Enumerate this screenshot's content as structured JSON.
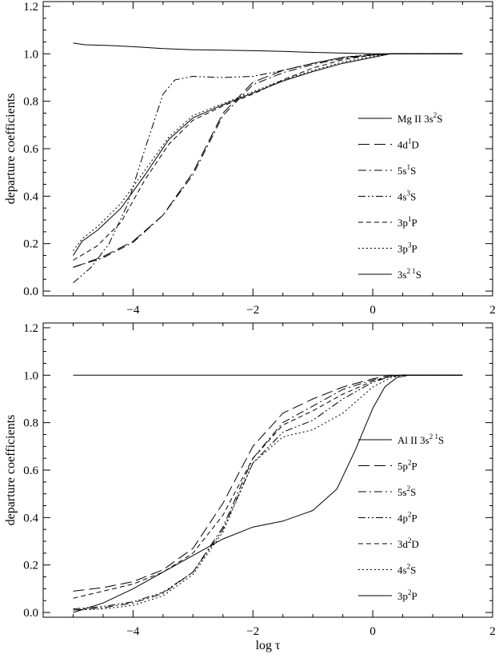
{
  "chart_data": [
    {
      "type": "line",
      "xlabel": "",
      "ylabel": "departure coefficients",
      "xlim": [
        -5.5,
        2
      ],
      "ylim": [
        -0.02,
        1.22
      ],
      "xticks": [
        -4,
        -2,
        0,
        2
      ],
      "xtick_labels": [
        "−4",
        "−2",
        "0",
        "2"
      ],
      "yticks": [
        0.0,
        0.2,
        0.4,
        0.6,
        0.8,
        1.0,
        1.2
      ],
      "ytick_labels": [
        "0.0",
        "0.2",
        "0.4",
        "0.6",
        "0.8",
        "1.0",
        "1.2"
      ],
      "legend_position": "right",
      "series": [
        {
          "name": "Mg II 3s 2S",
          "label": {
            "pre": "Mg II 3s",
            "sup": "2",
            "post": "S"
          },
          "dash": "solid",
          "x": [
            -5,
            -4.8,
            -4.4,
            -4,
            -3.5,
            -3,
            -2.5,
            -2,
            -1.5,
            -1,
            -0.5,
            0,
            0.3,
            0.5,
            1,
            1.5
          ],
          "y": [
            1.045,
            1.038,
            1.035,
            1.03,
            1.022,
            1.017,
            1.015,
            1.013,
            1.01,
            1.006,
            1.003,
            1.0,
            1.0,
            1.0,
            1.0,
            1.0
          ]
        },
        {
          "name": "4d 1D",
          "label": {
            "pre": "4d",
            "sup": "1",
            "post": "D"
          },
          "dash": "14,6",
          "x": [
            -5,
            -4.5,
            -4,
            -3.5,
            -3,
            -2.5,
            -2,
            -1.5,
            -1,
            -0.5,
            0,
            0.3,
            0.5,
            1,
            1.5
          ],
          "y": [
            0.1,
            0.145,
            0.21,
            0.32,
            0.5,
            0.75,
            0.88,
            0.93,
            0.96,
            0.985,
            0.995,
            1.0,
            1.0,
            1.0,
            1.0
          ]
        },
        {
          "name": "5s 1S",
          "label": {
            "pre": "5s",
            "sup": "1",
            "post": "S"
          },
          "dash": "10,4,2,4",
          "x": [
            -5,
            -4.5,
            -4,
            -3.5,
            -3,
            -2.5,
            -2,
            -1.5,
            -1,
            -0.5,
            0,
            0.3,
            0.5,
            1,
            1.5
          ],
          "y": [
            0.1,
            0.14,
            0.205,
            0.32,
            0.49,
            0.74,
            0.87,
            0.92,
            0.955,
            0.98,
            0.995,
            1.0,
            1.0,
            1.0,
            1.0
          ]
        },
        {
          "name": "4s 3S",
          "label": {
            "pre": "4s",
            "sup": "3",
            "post": "S"
          },
          "dash": "9,3,2,3,2,3",
          "x": [
            -5,
            -4.7,
            -4.4,
            -4.1,
            -3.8,
            -3.5,
            -3.3,
            -3,
            -2.5,
            -2,
            -1.5,
            -1,
            -0.5,
            0,
            0.3,
            0.5,
            1,
            1.5
          ],
          "y": [
            0.035,
            0.1,
            0.2,
            0.36,
            0.6,
            0.83,
            0.89,
            0.905,
            0.9,
            0.905,
            0.93,
            0.96,
            0.985,
            0.998,
            1.0,
            1.0,
            1.0,
            1.0
          ]
        },
        {
          "name": "3p 1P",
          "label": {
            "pre": "3p",
            "sup": "1",
            "post": "P"
          },
          "dash": "6,4",
          "x": [
            -5,
            -4.6,
            -4.2,
            -3.8,
            -3.4,
            -3,
            -2.5,
            -2,
            -1.5,
            -1,
            -0.5,
            0,
            0.3,
            0.5,
            1,
            1.5
          ],
          "y": [
            0.13,
            0.19,
            0.29,
            0.47,
            0.62,
            0.72,
            0.78,
            0.83,
            0.89,
            0.94,
            0.975,
            0.995,
            1.0,
            1.0,
            1.0,
            1.0
          ]
        },
        {
          "name": "3p 3P",
          "label": {
            "pre": "3p",
            "sup": "3",
            "post": "P"
          },
          "dash": "2,3",
          "x": [
            -5,
            -4.85,
            -4.6,
            -4.2,
            -3.8,
            -3.4,
            -3,
            -2.5,
            -2,
            -1.5,
            -1,
            -0.5,
            0,
            0.3,
            0.5,
            1,
            1.5
          ],
          "y": [
            0.17,
            0.22,
            0.27,
            0.37,
            0.51,
            0.65,
            0.74,
            0.79,
            0.84,
            0.89,
            0.93,
            0.965,
            0.99,
            1.0,
            1.0,
            1.0,
            1.0
          ]
        },
        {
          "name": "3s2 1S",
          "label": {
            "pre": "3s",
            "sup": "2 1",
            "post": "S"
          },
          "dash": "solid",
          "x": [
            -5,
            -4.85,
            -4.6,
            -4.2,
            -3.8,
            -3.4,
            -3,
            -2.5,
            -2,
            -1.5,
            -1,
            -0.5,
            0,
            0.3,
            0.5,
            1,
            1.5
          ],
          "y": [
            0.15,
            0.21,
            0.255,
            0.35,
            0.49,
            0.64,
            0.73,
            0.785,
            0.835,
            0.885,
            0.925,
            0.96,
            0.985,
            1.0,
            1.0,
            1.0,
            1.0
          ]
        }
      ]
    },
    {
      "type": "line",
      "xlabel": "log τ",
      "ylabel": "departure coefficients",
      "xlim": [
        -5.5,
        2
      ],
      "ylim": [
        -0.02,
        1.22
      ],
      "xticks": [
        -4,
        -2,
        0,
        2
      ],
      "xtick_labels": [
        "−4",
        "−2",
        "0",
        "2"
      ],
      "yticks": [
        0.0,
        0.2,
        0.4,
        0.6,
        0.8,
        1.0,
        1.2
      ],
      "ytick_labels": [
        "0.0",
        "0.2",
        "0.4",
        "0.6",
        "0.8",
        "1.0",
        "1.2"
      ],
      "legend_position": "right",
      "series": [
        {
          "name": "Al II 3s2 1S",
          "label": {
            "pre": "Al II 3s",
            "sup": "2 1",
            "post": "S"
          },
          "dash": "solid",
          "x": [
            -5,
            -4,
            -3,
            -2,
            -1,
            0,
            0.5,
            1,
            1.5
          ],
          "y": [
            1.0,
            1.0,
            1.0,
            1.0,
            1.0,
            1.0,
            1.0,
            1.0,
            1.0
          ]
        },
        {
          "name": "5p 2P",
          "label": {
            "pre": "5p",
            "sup": "2",
            "post": "P"
          },
          "dash": "14,6",
          "x": [
            -5,
            -4.5,
            -4,
            -3.5,
            -3,
            -2.5,
            -2,
            -1.5,
            -1,
            -0.5,
            0,
            0.3,
            0.5,
            1,
            1.5
          ],
          "y": [
            0.09,
            0.105,
            0.13,
            0.18,
            0.27,
            0.46,
            0.7,
            0.84,
            0.9,
            0.95,
            0.985,
            1.0,
            1.0,
            1.0,
            1.0
          ]
        },
        {
          "name": "5s 2S",
          "label": {
            "pre": "5s",
            "sup": "2",
            "post": "S"
          },
          "dash": "10,4,2,4",
          "x": [
            -5,
            -4.5,
            -4,
            -3.5,
            -3,
            -2.5,
            -2,
            -1.5,
            -1,
            -0.5,
            0,
            0.3,
            0.5,
            1,
            1.5
          ],
          "y": [
            0.01,
            0.02,
            0.04,
            0.08,
            0.17,
            0.36,
            0.65,
            0.8,
            0.87,
            0.94,
            0.98,
            0.995,
            1.0,
            1.0,
            1.0
          ]
        },
        {
          "name": "4p 2P",
          "label": {
            "pre": "4p",
            "sup": "2",
            "post": "P"
          },
          "dash": "9,3,2,3,2,3",
          "x": [
            -5,
            -4.5,
            -4,
            -3.5,
            -3,
            -2.5,
            -2,
            -1.5,
            -1,
            -0.5,
            0,
            0.3,
            0.5,
            1,
            1.5
          ],
          "y": [
            0.015,
            0.025,
            0.045,
            0.085,
            0.17,
            0.35,
            0.63,
            0.76,
            0.81,
            0.9,
            0.97,
            0.995,
            1.0,
            1.0,
            1.0
          ]
        },
        {
          "name": "3d 2D",
          "label": {
            "pre": "3d",
            "sup": "2",
            "post": "D"
          },
          "dash": "6,4",
          "x": [
            -5,
            -4.5,
            -4,
            -3.5,
            -3,
            -2.5,
            -2,
            -1.5,
            -1,
            -0.5,
            0,
            0.3,
            0.5,
            1,
            1.5
          ],
          "y": [
            0.06,
            0.09,
            0.12,
            0.17,
            0.25,
            0.41,
            0.65,
            0.79,
            0.85,
            0.92,
            0.975,
            0.995,
            1.0,
            1.0,
            1.0
          ]
        },
        {
          "name": "4s 2S",
          "label": {
            "pre": "4s",
            "sup": "2",
            "post": "S"
          },
          "dash": "2,3",
          "x": [
            -5,
            -4.5,
            -4,
            -3.5,
            -3,
            -2.5,
            -2,
            -1.5,
            -1,
            -0.5,
            0,
            0.3,
            0.5,
            1,
            1.5
          ],
          "y": [
            0.01,
            0.015,
            0.03,
            0.07,
            0.16,
            0.34,
            0.63,
            0.74,
            0.77,
            0.84,
            0.95,
            0.99,
            1.0,
            1.0,
            1.0
          ]
        },
        {
          "name": "3p 2P",
          "label": {
            "pre": "3p",
            "sup": "2",
            "post": "P"
          },
          "dash": "solid",
          "x": [
            -5,
            -4.5,
            -4,
            -3.5,
            -3,
            -2.5,
            -2,
            -1.5,
            -1,
            -0.6,
            -0.3,
            0,
            0.2,
            0.4,
            0.6,
            1,
            1.5
          ],
          "y": [
            0.0,
            0.04,
            0.1,
            0.17,
            0.24,
            0.31,
            0.36,
            0.385,
            0.43,
            0.52,
            0.68,
            0.86,
            0.95,
            0.99,
            1.0,
            1.0,
            1.0
          ]
        }
      ]
    }
  ]
}
